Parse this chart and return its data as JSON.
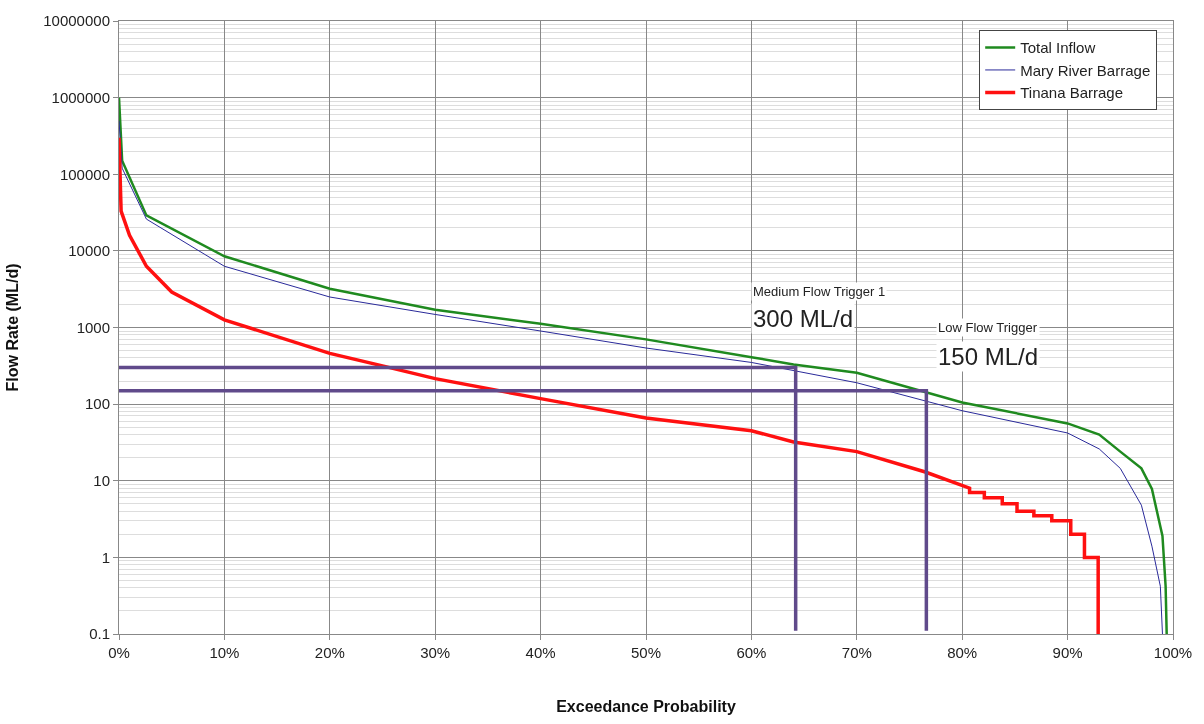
{
  "chart_data": {
    "type": "line",
    "xlabel": "Exceedance Probability",
    "ylabel": "Flow Rate (ML/d)",
    "log": "y",
    "grid": true,
    "legend": "top right",
    "marker": "none",
    "xlim": [
      0,
      100
    ],
    "ylim": [
      0.1,
      10000000
    ],
    "xticks": [
      {
        "value": 0,
        "label": "0%"
      },
      {
        "value": 10,
        "label": "10%"
      },
      {
        "value": 20,
        "label": "20%"
      },
      {
        "value": 30,
        "label": "30%"
      },
      {
        "value": 40,
        "label": "40%"
      },
      {
        "value": 50,
        "label": "50%"
      },
      {
        "value": 60,
        "label": "60%"
      },
      {
        "value": 70,
        "label": "70%"
      },
      {
        "value": 80,
        "label": "80%"
      },
      {
        "value": 90,
        "label": "90%"
      },
      {
        "value": 100,
        "label": "100%"
      }
    ],
    "yticks": [
      0.1,
      1,
      10,
      100,
      1000,
      10000,
      100000,
      1000000,
      10000000
    ],
    "series": [
      {
        "name": "Total Inflow",
        "color": "#1f8a1f",
        "line_style": "solid",
        "x": [
          0,
          0.3,
          2.6,
          10,
          20,
          30,
          40,
          50,
          60,
          64,
          70,
          80,
          90,
          93,
          95,
          97,
          98,
          99,
          99.3,
          99.4
        ],
        "values": [
          1000000,
          150000,
          29000,
          8500,
          3200,
          1700,
          1120,
          700,
          410,
          330,
          257,
          105,
          56,
          40,
          24,
          14.5,
          7.8,
          1.9,
          0.42,
          0.1
        ]
      },
      {
        "name": "Mary River Barrage",
        "color": "#2a2a9a",
        "line_style": "solid",
        "x": [
          0,
          0.3,
          2.6,
          10,
          20,
          30,
          40,
          50,
          60,
          70,
          80,
          90,
          93,
          95,
          97,
          98,
          98.8,
          99
        ],
        "values": [
          500000,
          120000,
          26000,
          6300,
          2500,
          1480,
          900,
          540,
          350,
          190,
          82,
          42,
          26,
          14.5,
          4.8,
          1.4,
          0.42,
          0.1
        ]
      },
      {
        "name": "Tinana Barrage",
        "color": "#ff1010",
        "line_style": "solid",
        "x": [
          0,
          0.2,
          1,
          2.6,
          5,
          10,
          20,
          25,
          30,
          40,
          50,
          60,
          64,
          70,
          76.5,
          80.7,
          80.7,
          82.1,
          82.1,
          83.8,
          83.8,
          85.2,
          85.2,
          86.8,
          86.8,
          88.5,
          88.5,
          90.3,
          90.3,
          91.6,
          91.6,
          92.9,
          92.9
        ],
        "values": [
          300000,
          33000,
          16000,
          6300,
          2900,
          1260,
          460,
          316,
          215,
          118,
          66,
          45,
          32,
          24,
          13,
          8,
          7,
          7,
          6,
          6,
          5,
          5,
          4,
          4,
          3.5,
          3.5,
          3,
          3,
          2,
          2,
          1,
          1,
          0.1
        ]
      },
      {
        "color": "#604a8b",
        "line_style": "solid",
        "x": [
          0,
          64.2,
          64.2
        ],
        "values": [
          300,
          300,
          0.11
        ]
      },
      {
        "color": "#604a8b",
        "line_style": "solid",
        "x": [
          0,
          76.6,
          76.6
        ],
        "values": [
          150,
          150,
          0.11
        ]
      }
    ],
    "annotations": [
      "Medium Flow Trigger 1",
      "300 ML/d",
      "Low Flow Trigger",
      "150 ML/d"
    ]
  }
}
